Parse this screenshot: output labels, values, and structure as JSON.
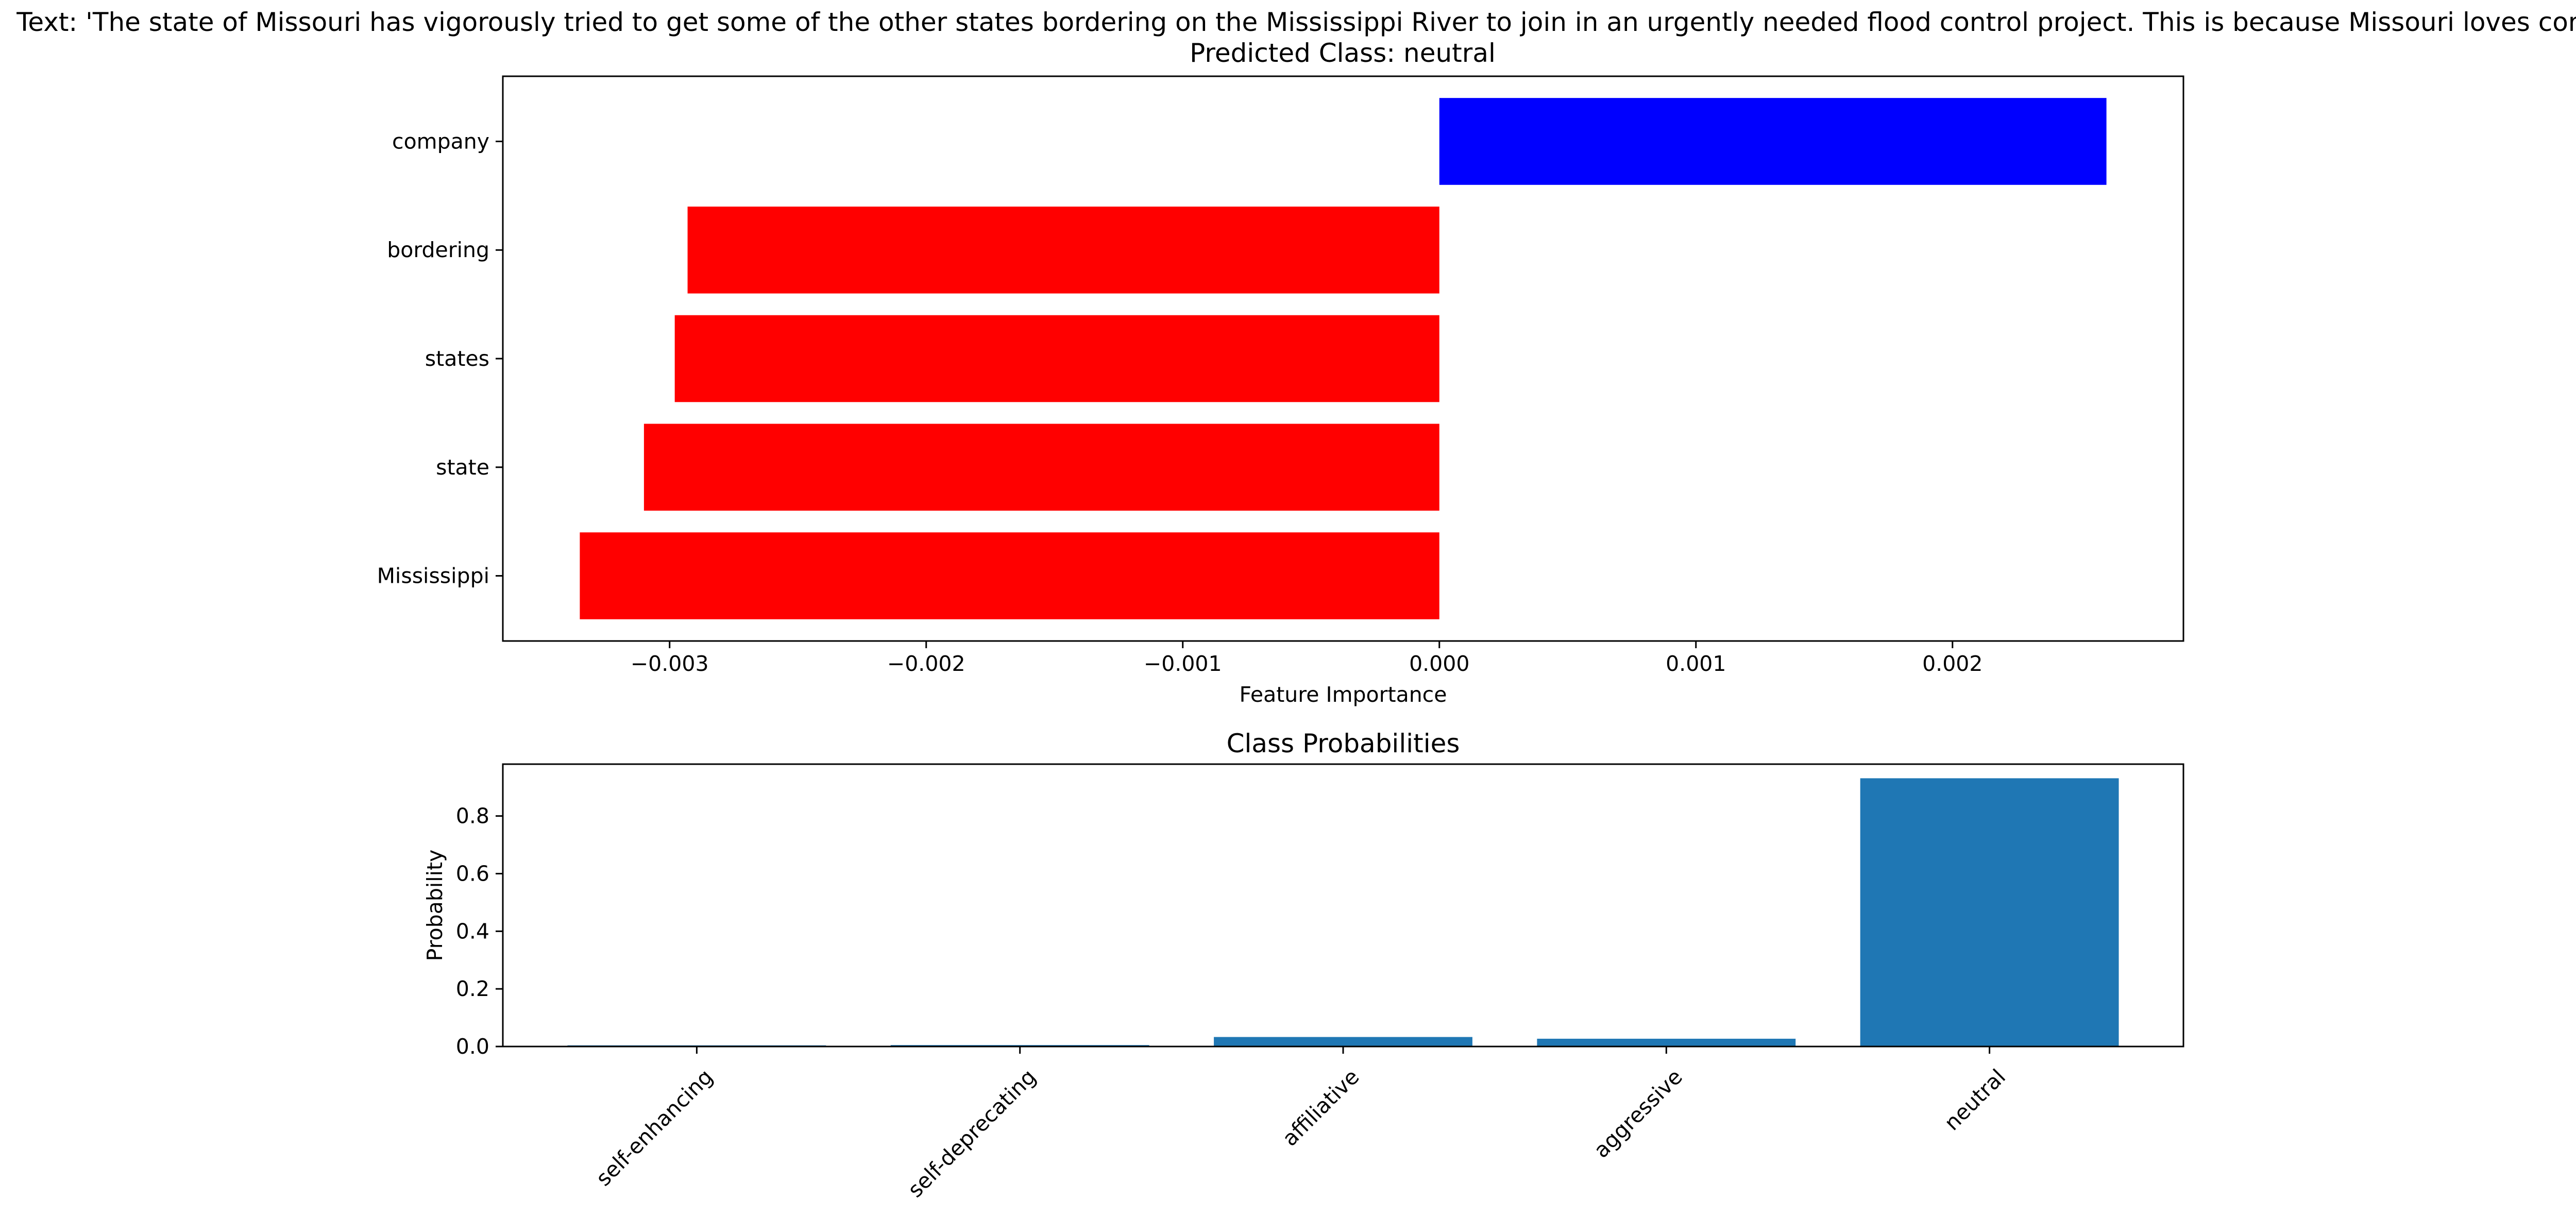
{
  "figure": {
    "title_line1": "Text: 'The state of Missouri has vigorously tried to get some of the other states bordering on the Mississippi River to join in an urgently needed flood control project. This is because Missouri loves company.'",
    "title_line2": "Predicted Class: neutral"
  },
  "chart_data": [
    {
      "type": "bar",
      "orientation": "horizontal",
      "title": "",
      "xlabel": "Feature Importance",
      "ylabel": "",
      "categories": [
        "Mississippi",
        "state",
        "states",
        "bordering",
        "company"
      ],
      "values": [
        -0.00335,
        -0.0031,
        -0.00298,
        -0.00293,
        0.0026
      ],
      "bar_colors": [
        "#ff0000",
        "#ff0000",
        "#ff0000",
        "#ff0000",
        "#0000ff"
      ],
      "xlim": [
        -0.00365,
        0.0029
      ],
      "xticks": [
        -0.003,
        -0.002,
        -0.001,
        0.0,
        0.001,
        0.002
      ],
      "xtick_labels": [
        "−0.003",
        "−0.002",
        "−0.001",
        "0.000",
        "0.001",
        "0.002"
      ],
      "grid": false
    },
    {
      "type": "bar",
      "orientation": "vertical",
      "title": "Class Probabilities",
      "xlabel": "",
      "ylabel": "Probability",
      "categories": [
        "self-enhancing",
        "self-deprecating",
        "affiliative",
        "aggressive",
        "neutral"
      ],
      "values": [
        0.004,
        0.005,
        0.033,
        0.027,
        0.931
      ],
      "bar_color": "#1f77b4",
      "ylim": [
        0,
        0.98
      ],
      "yticks": [
        0.0,
        0.2,
        0.4,
        0.6,
        0.8
      ],
      "ytick_labels": [
        "0.0",
        "0.2",
        "0.4",
        "0.6",
        "0.8"
      ],
      "xtick_rotation": 45,
      "grid": false
    }
  ]
}
